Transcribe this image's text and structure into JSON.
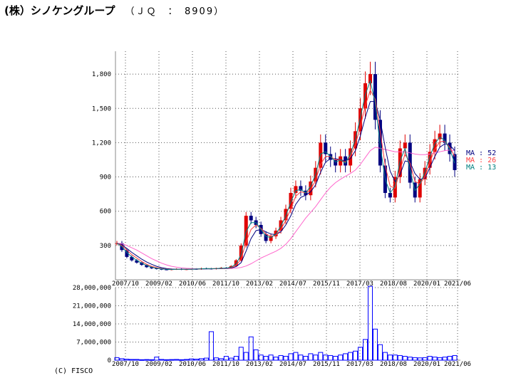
{
  "header": {
    "title": "(株）シノケングループ",
    "code": "（ＪＱ　：　8909）"
  },
  "footer": {
    "copyright": "(C) FISCO"
  },
  "colors": {
    "up": "#e00000",
    "down": "#000080",
    "ma13": "#008080",
    "ma26": "#ff4040",
    "ma52": "#000080",
    "ma_long": "#ff66cc",
    "volume": "#0000ff",
    "grid": "#555555"
  },
  "chart_data": [
    {
      "type": "line",
      "title": "",
      "ylim": [
        0,
        2000
      ],
      "y_ticks": [
        "300",
        "600",
        "900",
        "1,200",
        "1,500",
        "1,800"
      ],
      "y_tick_values": [
        300,
        600,
        900,
        1200,
        1500,
        1800
      ],
      "x_ticks": [
        "2007/10",
        "2009/02",
        "2010/06",
        "2011/10",
        "2013/02",
        "2014/07",
        "2015/11",
        "2017/03",
        "2018/08",
        "2020/01",
        "2021/06"
      ],
      "grid": true,
      "legend": [
        {
          "label": "MA : 52",
          "color": "#000080"
        },
        {
          "label": "MA : 26",
          "color": "#ff4040"
        },
        {
          "label": "MA : 13",
          "color": "#008080"
        }
      ],
      "series_note": "price (candles) with moving averages",
      "price": [
        320,
        260,
        200,
        170,
        150,
        130,
        110,
        100,
        95,
        90,
        88,
        92,
        95,
        90,
        92,
        95,
        93,
        100,
        98,
        95,
        100,
        105,
        102,
        120,
        170,
        300,
        560,
        520,
        480,
        400,
        340,
        380,
        430,
        520,
        620,
        760,
        820,
        780,
        740,
        860,
        980,
        1200,
        1100,
        1050,
        1000,
        1080,
        1000,
        1150,
        1300,
        1500,
        1720,
        1800,
        1400,
        1000,
        760,
        720,
        900,
        1150,
        1200,
        850,
        720,
        880,
        980,
        1120,
        1230,
        1280,
        1200,
        1100,
        960
      ],
      "ma13": [
        320,
        290,
        240,
        200,
        170,
        145,
        125,
        110,
        100,
        95,
        91,
        90,
        92,
        93,
        92,
        93,
        94,
        96,
        98,
        97,
        98,
        100,
        102,
        110,
        140,
        220,
        420,
        500,
        500,
        440,
        380,
        370,
        400,
        470,
        560,
        680,
        780,
        790,
        760,
        820,
        920,
        1100,
        1120,
        1080,
        1030,
        1050,
        1020,
        1100,
        1230,
        1420,
        1620,
        1740,
        1550,
        1180,
        880,
        760,
        820,
        1040,
        1150,
        960,
        780,
        840,
        940,
        1080,
        1190,
        1250,
        1220,
        1140,
        1020
      ],
      "ma26": [
        320,
        300,
        260,
        220,
        190,
        160,
        135,
        118,
        106,
        98,
        93,
        91,
        91,
        92,
        92,
        93,
        94,
        95,
        97,
        97,
        98,
        99,
        101,
        106,
        125,
        180,
        330,
        440,
        480,
        450,
        400,
        380,
        390,
        440,
        520,
        620,
        730,
        770,
        760,
        790,
        870,
        1010,
        1080,
        1080,
        1050,
        1050,
        1030,
        1080,
        1180,
        1340,
        1520,
        1660,
        1580,
        1300,
        1000,
        820,
        800,
        960,
        1100,
        1020,
        860,
        840,
        900,
        1030,
        1140,
        1210,
        1210,
        1160,
        1080
      ],
      "ma52": [
        320,
        305,
        275,
        240,
        210,
        180,
        155,
        135,
        118,
        106,
        98,
        94,
        92,
        92,
        92,
        92,
        93,
        94,
        95,
        96,
        97,
        98,
        99,
        103,
        115,
        150,
        250,
        360,
        430,
        440,
        420,
        400,
        395,
        420,
        480,
        560,
        660,
        720,
        740,
        770,
        830,
        940,
        1030,
        1060,
        1060,
        1050,
        1040,
        1060,
        1130,
        1260,
        1420,
        1560,
        1560,
        1400,
        1160,
        950,
        860,
        920,
        1040,
        1030,
        930,
        880,
        890,
        980,
        1080,
        1160,
        1190,
        1180,
        1130
      ],
      "ma_long": [
        320,
        315,
        300,
        280,
        260,
        235,
        210,
        185,
        165,
        145,
        130,
        118,
        110,
        104,
        100,
        98,
        97,
        96,
        96,
        96,
        96,
        97,
        98,
        99,
        102,
        108,
        120,
        140,
        165,
        190,
        210,
        230,
        250,
        275,
        310,
        360,
        420,
        480,
        540,
        590,
        640,
        700,
        760,
        810,
        850,
        880,
        905,
        930,
        960,
        1010,
        1070,
        1130,
        1160,
        1150,
        1140,
        1130,
        1120,
        1120,
        1120,
        1110,
        1100,
        1095,
        1095,
        1100,
        1110,
        1120,
        1130,
        1135,
        1130
      ]
    },
    {
      "type": "bar",
      "title": "",
      "ylim": [
        0,
        28000000
      ],
      "y_ticks": [
        "0",
        "7,000,000",
        "14,000,000",
        "21,000,000",
        "28,000,000"
      ],
      "y_tick_values": [
        0,
        7000000,
        14000000,
        21000000,
        28000000
      ],
      "x_ticks": [
        "2007/10",
        "2009/02",
        "2010/06",
        "2011/10",
        "2013/02",
        "2014/07",
        "2015/11",
        "2017/03",
        "2018/08",
        "2020/01",
        "2021/06"
      ],
      "grid": true,
      "values": [
        1000000,
        600000,
        400000,
        300000,
        300000,
        200000,
        250000,
        200000,
        1200000,
        300000,
        200000,
        250000,
        300000,
        200000,
        300000,
        500000,
        400000,
        600000,
        800000,
        11000000,
        900000,
        600000,
        1500000,
        800000,
        1500000,
        5000000,
        3000000,
        9000000,
        4000000,
        2000000,
        1500000,
        2000000,
        1200000,
        1800000,
        1500000,
        2500000,
        3000000,
        2000000,
        1500000,
        2500000,
        2000000,
        3000000,
        2000000,
        1800000,
        1500000,
        2000000,
        2500000,
        3000000,
        3500000,
        5000000,
        8000000,
        28500000,
        12000000,
        6000000,
        3000000,
        2000000,
        2000000,
        1800000,
        1500000,
        1200000,
        1000000,
        900000,
        1000000,
        1500000,
        1200000,
        1000000,
        1200000,
        1500000,
        1800000
      ]
    }
  ]
}
